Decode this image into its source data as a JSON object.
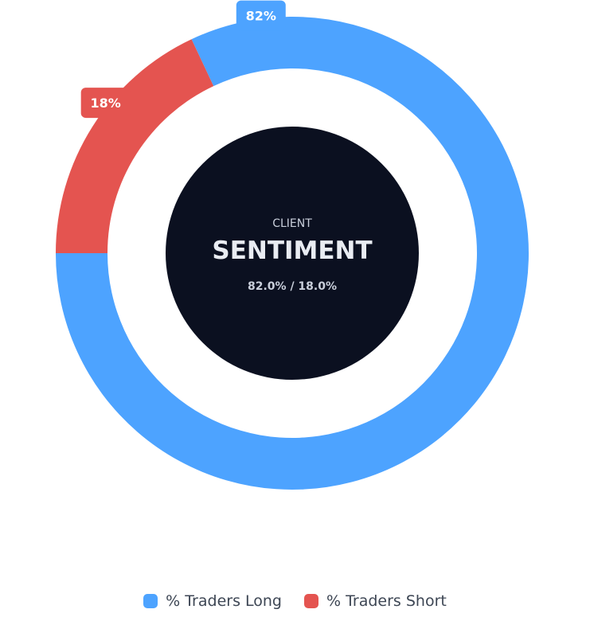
{
  "chart_data": {
    "type": "pie",
    "variant": "doughnut",
    "categories": [
      "% Traders Long",
      "% Traders Short"
    ],
    "values": [
      82,
      18
    ],
    "colors": [
      "#4da3ff",
      "#e45450"
    ],
    "data_labels": [
      "82%",
      "18%"
    ],
    "center": {
      "kicker": "CLIENT",
      "title": "SENTIMENT",
      "subtitle": "82.0% / 18.0%",
      "fill": "#0b1020"
    },
    "legend_position": "bottom"
  },
  "legend": {
    "items": [
      {
        "label": "% Traders Long",
        "color": "#4da3ff"
      },
      {
        "label": "% Traders Short",
        "color": "#e45450"
      }
    ]
  }
}
